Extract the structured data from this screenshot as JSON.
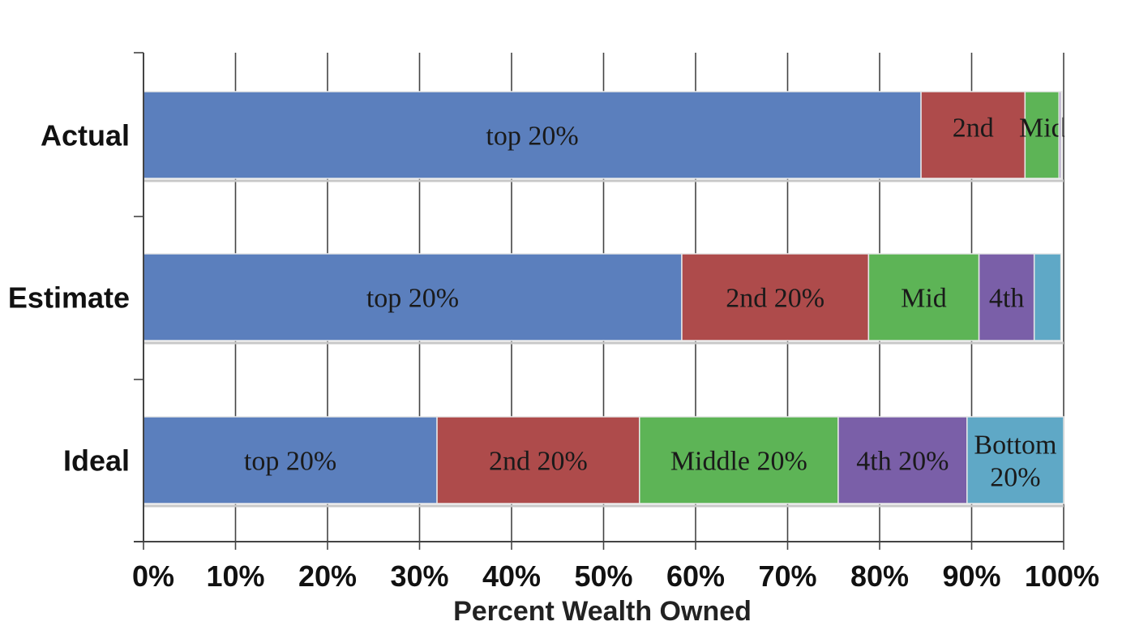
{
  "chart_data": {
    "type": "bar",
    "orientation": "horizontal",
    "stacked": true,
    "xlabel": "Percent Wealth Owned",
    "xlim": [
      0,
      100
    ],
    "x_ticks": [
      "0%",
      "10%",
      "20%",
      "30%",
      "40%",
      "50%",
      "60%",
      "70%",
      "80%",
      "90%",
      "100%"
    ],
    "grid": "vertical",
    "categories": [
      "Actual",
      "Estimate",
      "Ideal"
    ],
    "series": [
      {
        "color": "#5b7fbd",
        "values": [
          84.5,
          58.5,
          31.9
        ],
        "labels": [
          "top 20%",
          "top 20%",
          "top 20%"
        ]
      },
      {
        "color": "#ae4b4b",
        "values": [
          11.3,
          20.3,
          22.0
        ],
        "labels": [
          "2nd",
          "2nd 20%",
          "2nd 20%"
        ]
      },
      {
        "color": "#5db456",
        "values": [
          3.7,
          12.0,
          21.6
        ],
        "labels": [
          "Mid",
          "Mid",
          "Middle 20%"
        ]
      },
      {
        "color": "#7a5fa8",
        "values": [
          0.2,
          6.0,
          14.0
        ],
        "labels": [
          "",
          "4th",
          "4th 20%"
        ]
      },
      {
        "color": "#5fa8c6",
        "values": [
          0.1,
          2.9,
          10.5
        ],
        "labels": [
          "",
          "",
          "Bottom\n20%"
        ]
      }
    ]
  }
}
